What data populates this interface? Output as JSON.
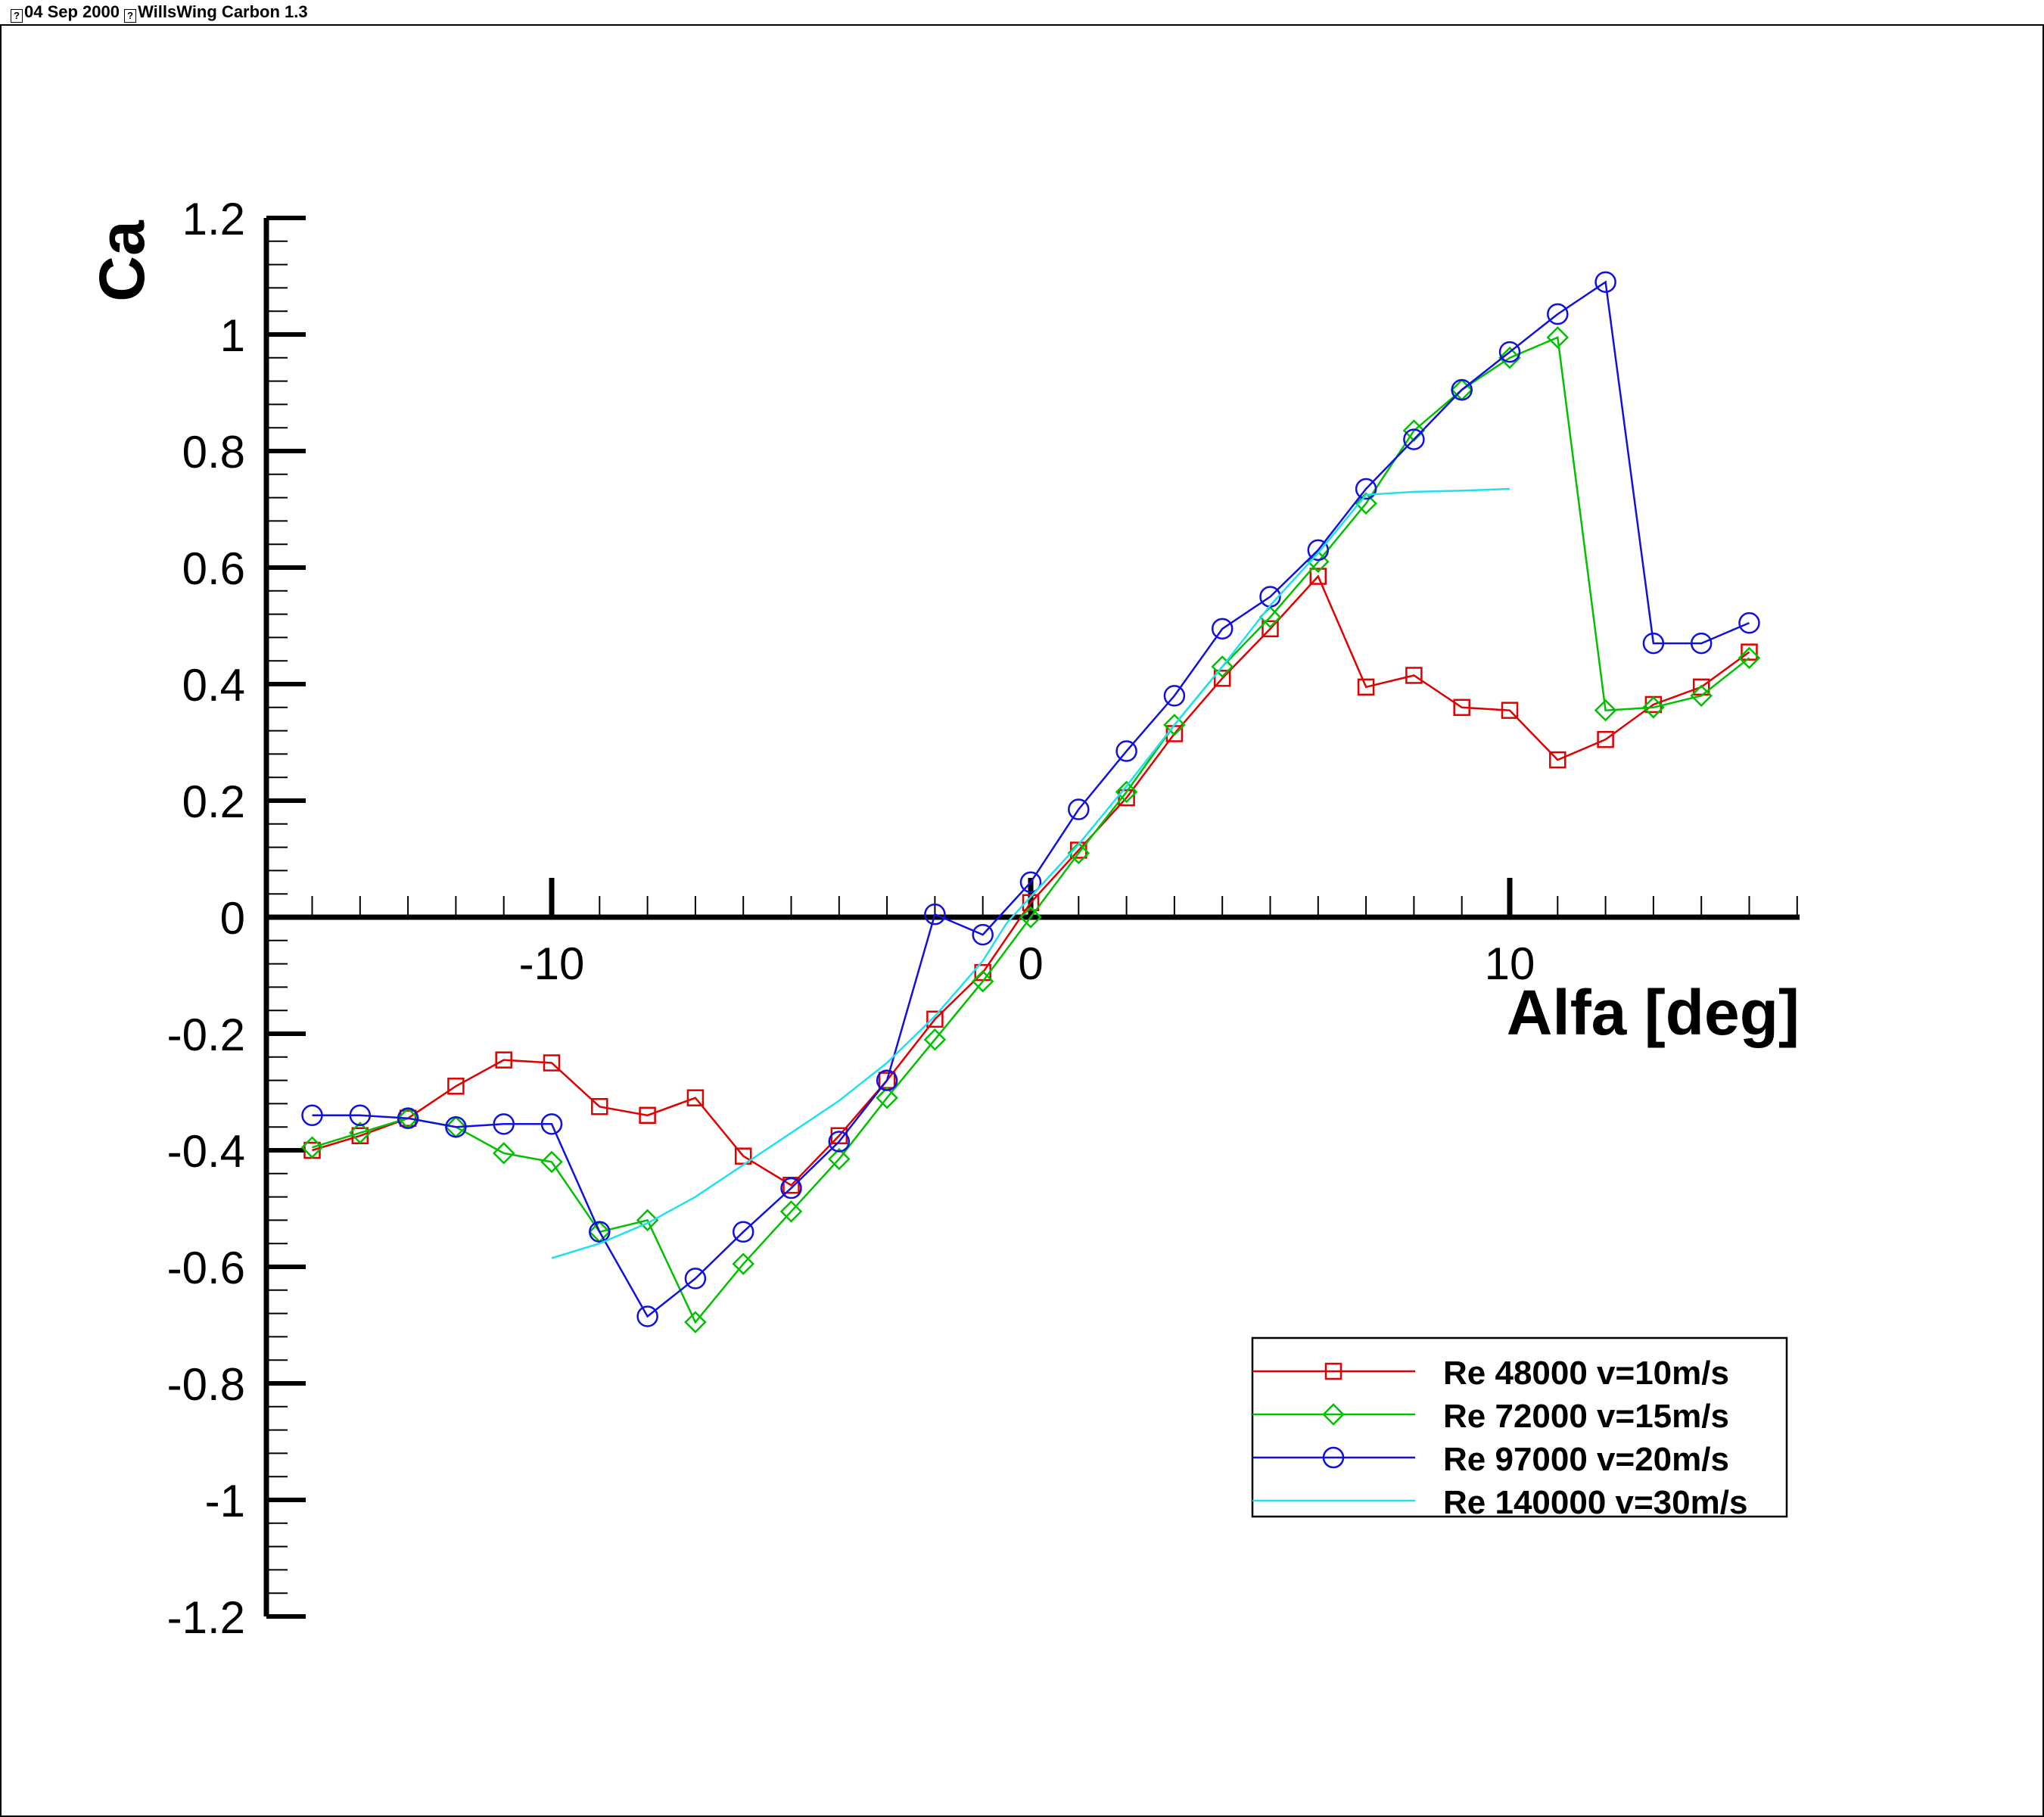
{
  "header": {
    "date_icon": "unknown-glyph-icon",
    "date": "04 Sep 2000",
    "title_icon": "unknown-glyph-icon",
    "title": "WillsWing Carbon 1.3"
  },
  "chart_data": {
    "type": "line",
    "title": "",
    "xlabel": "Alfa [deg]",
    "ylabel": "Ca",
    "xlim": [
      -16,
      16
    ],
    "ylim": [
      -1.2,
      1.2
    ],
    "x_ticks_major": [
      -10,
      0,
      10
    ],
    "x_tick_labels": [
      "-10",
      "0",
      "10"
    ],
    "y_ticks": [
      1.2,
      1,
      0.8,
      0.6,
      0.4,
      0.2,
      0,
      -0.2,
      -0.4,
      -0.6,
      -0.8,
      -1,
      -1.2
    ],
    "y_tick_labels": [
      "1.2",
      "1",
      "0.8",
      "0.6",
      "0.4",
      "0.2",
      "0",
      "-0.2",
      "-0.4",
      "-0.6",
      "-0.8",
      "-1",
      "-1.2"
    ],
    "grid": false,
    "legend_placement": "bottom-right",
    "series": [
      {
        "name": "Re 48000 v=10m/s",
        "color": "#e00000",
        "marker": "square",
        "points": [
          [
            -15,
            -0.4
          ],
          [
            -14,
            -0.375
          ],
          [
            -13,
            -0.345
          ],
          [
            -12,
            -0.29
          ],
          [
            -11,
            -0.245
          ],
          [
            -10,
            -0.25
          ],
          [
            -9,
            -0.325
          ],
          [
            -8,
            -0.34
          ],
          [
            -7,
            -0.31
          ],
          [
            -6,
            -0.41
          ],
          [
            -5,
            -0.46
          ],
          [
            -4,
            -0.375
          ],
          [
            -3,
            -0.28
          ],
          [
            -2,
            -0.175
          ],
          [
            -1,
            -0.095
          ],
          [
            0,
            0.025
          ],
          [
            1,
            0.115
          ],
          [
            2,
            0.205
          ],
          [
            3,
            0.315
          ],
          [
            4,
            0.41
          ],
          [
            5,
            0.495
          ],
          [
            6,
            0.585
          ],
          [
            7,
            0.395
          ],
          [
            8,
            0.415
          ],
          [
            9,
            0.36
          ],
          [
            10,
            0.355
          ],
          [
            11,
            0.27
          ],
          [
            12,
            0.305
          ],
          [
            13,
            0.365
          ],
          [
            14,
            0.395
          ],
          [
            15,
            0.455
          ]
        ]
      },
      {
        "name": "Re 72000 v=15m/s",
        "color": "#00c000",
        "marker": "diamond",
        "points": [
          [
            -15,
            -0.395
          ],
          [
            -14,
            -0.37
          ],
          [
            -13,
            -0.345
          ],
          [
            -12,
            -0.36
          ],
          [
            -11,
            -0.405
          ],
          [
            -10,
            -0.42
          ],
          [
            -9,
            -0.54
          ],
          [
            -8,
            -0.52
          ],
          [
            -7,
            -0.695
          ],
          [
            -6,
            -0.595
          ],
          [
            -5,
            -0.505
          ],
          [
            -4,
            -0.415
          ],
          [
            -3,
            -0.31
          ],
          [
            -2,
            -0.21
          ],
          [
            -1,
            -0.11
          ],
          [
            0,
            0.0
          ],
          [
            1,
            0.11
          ],
          [
            2,
            0.215
          ],
          [
            3,
            0.33
          ],
          [
            4,
            0.43
          ],
          [
            5,
            0.515
          ],
          [
            6,
            0.61
          ],
          [
            7,
            0.71
          ],
          [
            8,
            0.835
          ],
          [
            9,
            0.905
          ],
          [
            10,
            0.96
          ],
          [
            11,
            0.995
          ],
          [
            12,
            0.355
          ],
          [
            13,
            0.36
          ],
          [
            14,
            0.38
          ],
          [
            15,
            0.445
          ]
        ]
      },
      {
        "name": "Re 97000 v=20m/s",
        "color": "#1010e0",
        "marker": "circle",
        "points": [
          [
            -15,
            -0.34
          ],
          [
            -14,
            -0.34
          ],
          [
            -13,
            -0.345
          ],
          [
            -12,
            -0.36
          ],
          [
            -11,
            -0.355
          ],
          [
            -10,
            -0.355
          ],
          [
            -9,
            -0.54
          ],
          [
            -8,
            -0.685
          ],
          [
            -7,
            -0.62
          ],
          [
            -6,
            -0.54
          ],
          [
            -5,
            -0.465
          ],
          [
            -4,
            -0.385
          ],
          [
            -3,
            -0.28
          ],
          [
            -2,
            0.005
          ],
          [
            -1,
            -0.03
          ],
          [
            0,
            0.06
          ],
          [
            1,
            0.185
          ],
          [
            2,
            0.285
          ],
          [
            3,
            0.38
          ],
          [
            4,
            0.495
          ],
          [
            5,
            0.55
          ],
          [
            6,
            0.63
          ],
          [
            7,
            0.735
          ],
          [
            8,
            0.82
          ],
          [
            9,
            0.905
          ],
          [
            10,
            0.97
          ],
          [
            11,
            1.035
          ],
          [
            12,
            1.09
          ],
          [
            13,
            0.47
          ],
          [
            14,
            0.47
          ],
          [
            15,
            0.505
          ]
        ]
      },
      {
        "name": "Re 140000 v=30m/s",
        "color": "#20e0f0",
        "marker": "none",
        "points": [
          [
            -10,
            -0.585
          ],
          [
            -9,
            -0.56
          ],
          [
            -8,
            -0.525
          ],
          [
            -7,
            -0.48
          ],
          [
            -6,
            -0.425
          ],
          [
            -5,
            -0.37
          ],
          [
            -4,
            -0.315
          ],
          [
            -3,
            -0.25
          ],
          [
            -2,
            -0.17
          ],
          [
            -1,
            -0.075
          ],
          [
            -0.5,
            -0.01
          ],
          [
            0,
            0.035
          ],
          [
            1,
            0.125
          ],
          [
            2,
            0.225
          ],
          [
            3,
            0.33
          ],
          [
            4,
            0.43
          ],
          [
            5,
            0.535
          ],
          [
            6,
            0.625
          ],
          [
            7,
            0.725
          ],
          [
            8,
            0.73
          ],
          [
            9,
            0.732
          ],
          [
            10,
            0.735
          ]
        ]
      }
    ]
  }
}
